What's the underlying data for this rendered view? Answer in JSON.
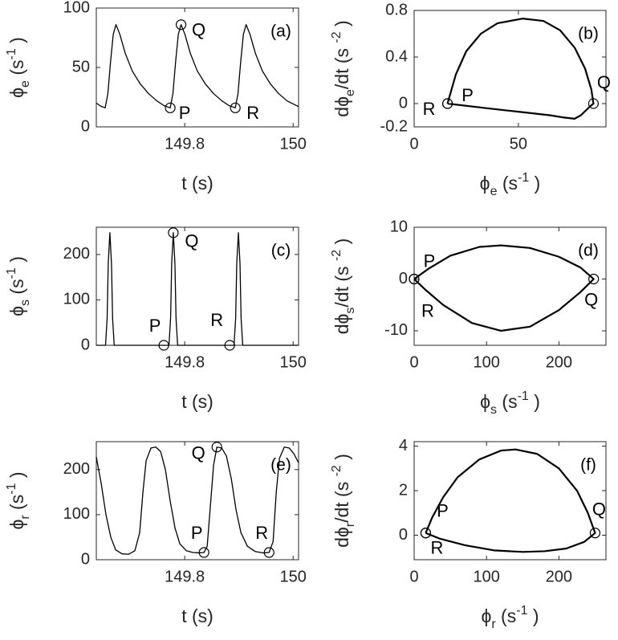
{
  "chart_data": [
    {
      "type": "line",
      "panel": "(a)",
      "xlabel": [
        "t (s)"
      ],
      "ylabel": [
        "ϕ",
        "e",
        " (s",
        "-1",
        " )"
      ],
      "xlim": [
        149.637,
        150.01
      ],
      "ylim": [
        0,
        100
      ],
      "xticks": [
        149.8,
        150
      ],
      "yticks": [
        0,
        50,
        100
      ],
      "color": "#000000",
      "line_width": 1.3,
      "x": [
        149.637,
        149.645,
        149.6533,
        149.6583,
        149.6633,
        149.6683,
        149.6733,
        149.6803,
        149.6903,
        149.7033,
        149.7183,
        149.7333,
        149.7483,
        149.7613,
        149.7733,
        149.7783,
        149.7833,
        149.7883,
        149.7933,
        149.8003,
        149.8103,
        149.8233,
        149.8383,
        149.8533,
        149.8683,
        149.8813,
        149.8933,
        149.8983,
        149.9033,
        149.9083,
        149.9133,
        149.9203,
        149.9303,
        149.9433,
        149.9583,
        149.9733,
        149.9883,
        150.01
      ],
      "values": [
        20,
        17.5,
        16,
        28,
        55,
        78,
        86,
        78,
        62,
        47,
        36,
        28,
        22,
        18,
        16,
        28,
        55,
        78,
        86,
        78,
        62,
        47,
        36,
        28,
        22,
        18,
        16,
        28,
        55,
        78,
        86,
        78,
        62,
        47,
        36,
        28,
        22,
        17
      ],
      "markers": [
        {
          "label": "P",
          "x": 149.7733,
          "y": 16
        },
        {
          "label": "Q",
          "x": 149.7933,
          "y": 86
        },
        {
          "label": "R",
          "x": 149.8933,
          "y": 16
        }
      ]
    },
    {
      "type": "line",
      "panel": "(b)",
      "xlabel": [
        "ϕ",
        "e",
        " (s",
        "-1",
        " )"
      ],
      "ylabel": [
        "dϕ",
        "e",
        "/dt (s ",
        "-2",
        " )"
      ],
      "xlim": [
        0,
        92
      ],
      "ylim": [
        -0.2,
        0.8
      ],
      "xticks": [
        0,
        50
      ],
      "yticks": [
        -0.2,
        0,
        0.4,
        0.8
      ],
      "color": "#000000",
      "line_width": 2.2,
      "x": [
        16,
        20,
        25,
        32,
        40,
        52,
        62,
        70,
        77,
        82,
        85,
        86,
        84,
        80,
        77,
        72,
        65,
        50,
        35,
        16
      ],
      "values": [
        0,
        0.25,
        0.45,
        0.6,
        0.69,
        0.73,
        0.71,
        0.63,
        0.48,
        0.3,
        0.12,
        0,
        -0.03,
        -0.1,
        -0.13,
        -0.12,
        -0.1,
        -0.07,
        -0.04,
        0
      ],
      "markers": [
        {
          "label": "P",
          "x": 16,
          "y": 0
        },
        {
          "label": "Q",
          "x": 86,
          "y": 0
        },
        {
          "label": "R",
          "x": 16,
          "y": 0
        }
      ]
    },
    {
      "type": "line",
      "panel": "(c)",
      "xlabel": [
        "t (s)"
      ],
      "ylabel": [
        "ϕ",
        "s",
        " (s",
        "-1",
        " )"
      ],
      "xlim": [
        149.637,
        150.01
      ],
      "ylim": [
        0,
        260
      ],
      "xticks": [
        149.8,
        150
      ],
      "yticks": [
        0,
        100,
        200
      ],
      "color": "#000000",
      "line_width": 1.3,
      "x": [
        149.637,
        149.654,
        149.657,
        149.659,
        149.662,
        149.665,
        149.667,
        149.67,
        149.7615,
        149.771,
        149.774,
        149.776,
        149.779,
        149.782,
        149.784,
        149.787,
        149.883,
        149.891,
        149.894,
        149.896,
        149.899,
        149.902,
        149.904,
        149.907,
        150.01
      ],
      "values": [
        0,
        0,
        60,
        180,
        248,
        180,
        60,
        0,
        0,
        0,
        60,
        180,
        248,
        180,
        60,
        0,
        0,
        0,
        60,
        180,
        248,
        180,
        60,
        0,
        0
      ],
      "markers": [
        {
          "label": "P",
          "x": 149.7615,
          "y": 0
        },
        {
          "label": "Q",
          "x": 149.779,
          "y": 248
        },
        {
          "label": "R",
          "x": 149.883,
          "y": 0
        }
      ]
    },
    {
      "type": "line",
      "panel": "(d)",
      "xlabel": [
        "ϕ",
        "s",
        " (s",
        "-1",
        " )"
      ],
      "ylabel": [
        "dϕ",
        "s",
        "/dt (s ",
        "-2",
        " )"
      ],
      "xlim": [
        0,
        265
      ],
      "ylim": [
        -12.8,
        10
      ],
      "xticks": [
        0,
        100,
        200
      ],
      "yticks": [
        -10,
        0,
        10
      ],
      "color": "#000000",
      "line_width": 2.2,
      "x": [
        0,
        20,
        50,
        90,
        120,
        160,
        200,
        230,
        248,
        230,
        200,
        160,
        120,
        80,
        40,
        15,
        0
      ],
      "values": [
        0,
        2,
        4.5,
        6.2,
        6.5,
        6,
        4.3,
        2.2,
        0,
        -2.5,
        -6,
        -9.2,
        -10,
        -8.5,
        -5,
        -2,
        0
      ],
      "markers": [
        {
          "label": "P",
          "x": 0,
          "y": 0
        },
        {
          "label": "Q",
          "x": 248,
          "y": 0
        },
        {
          "label": "R",
          "x": 0,
          "y": 0
        }
      ]
    },
    {
      "type": "line",
      "panel": "(e)",
      "xlabel": [
        "t (s)"
      ],
      "ylabel": [
        "ϕ",
        "r",
        " (s",
        "-1",
        " )"
      ],
      "xlim": [
        149.637,
        150.01
      ],
      "ylim": [
        0,
        262
      ],
      "xticks": [
        149.8,
        150
      ],
      "yticks": [
        0,
        100,
        200
      ],
      "color": "#000000",
      "line_width": 1.3,
      "x": [
        149.637,
        149.6459,
        149.6548,
        149.6637,
        149.6726,
        149.6844,
        149.6963,
        149.7081,
        149.717,
        149.723,
        149.7289,
        149.7378,
        149.7467,
        149.7556,
        149.7644,
        149.7733,
        149.7822,
        149.7911,
        149.803,
        149.8148,
        149.8267,
        149.8356,
        149.8415,
        149.8474,
        149.8533,
        149.8593,
        149.8681,
        149.877,
        149.8859,
        149.8948,
        149.9037,
        149.9156,
        149.9304,
        149.9452,
        149.9556,
        149.963,
        149.9689,
        149.9748,
        149.9837,
        149.9926,
        150.0015,
        150.01
      ],
      "values": [
        228,
        170,
        100,
        50,
        22,
        13,
        12,
        20,
        60,
        150,
        220,
        248,
        250,
        240,
        200,
        130,
        70,
        35,
        20,
        16,
        15,
        16,
        30,
        120,
        210,
        250,
        248,
        230,
        180,
        110,
        60,
        30,
        18,
        15,
        16,
        40,
        150,
        225,
        250,
        248,
        235,
        215
      ],
      "markers": [
        {
          "label": "P",
          "x": 149.8356,
          "y": 16
        },
        {
          "label": "Q",
          "x": 149.8593,
          "y": 250
        },
        {
          "label": "R",
          "x": 149.9556,
          "y": 16
        }
      ]
    },
    {
      "type": "line",
      "panel": "(f)",
      "xlabel": [
        "ϕ",
        "r",
        " (s",
        "-1",
        " )"
      ],
      "ylabel": [
        "dϕ",
        "r",
        "/dt (s ",
        "-2",
        " )"
      ],
      "xlim": [
        0,
        265
      ],
      "ylim": [
        -1.1,
        4.2
      ],
      "xticks": [
        0,
        100,
        200
      ],
      "yticks": [
        0,
        2,
        4
      ],
      "color": "#000000",
      "line_width": 2.2,
      "x": [
        16,
        25,
        40,
        60,
        90,
        120,
        140,
        170,
        200,
        225,
        240,
        250,
        235,
        210,
        180,
        150,
        110,
        70,
        35,
        16
      ],
      "values": [
        0.1,
        0.8,
        1.7,
        2.6,
        3.4,
        3.8,
        3.85,
        3.65,
        3,
        2,
        1,
        0.1,
        -0.3,
        -0.6,
        -0.72,
        -0.75,
        -0.68,
        -0.45,
        -0.15,
        0.1
      ],
      "markers": [
        {
          "label": "P",
          "x": 16,
          "y": 0.1
        },
        {
          "label": "Q",
          "x": 250,
          "y": 0.1
        },
        {
          "label": "R",
          "x": 16,
          "y": 0.1
        }
      ]
    }
  ]
}
